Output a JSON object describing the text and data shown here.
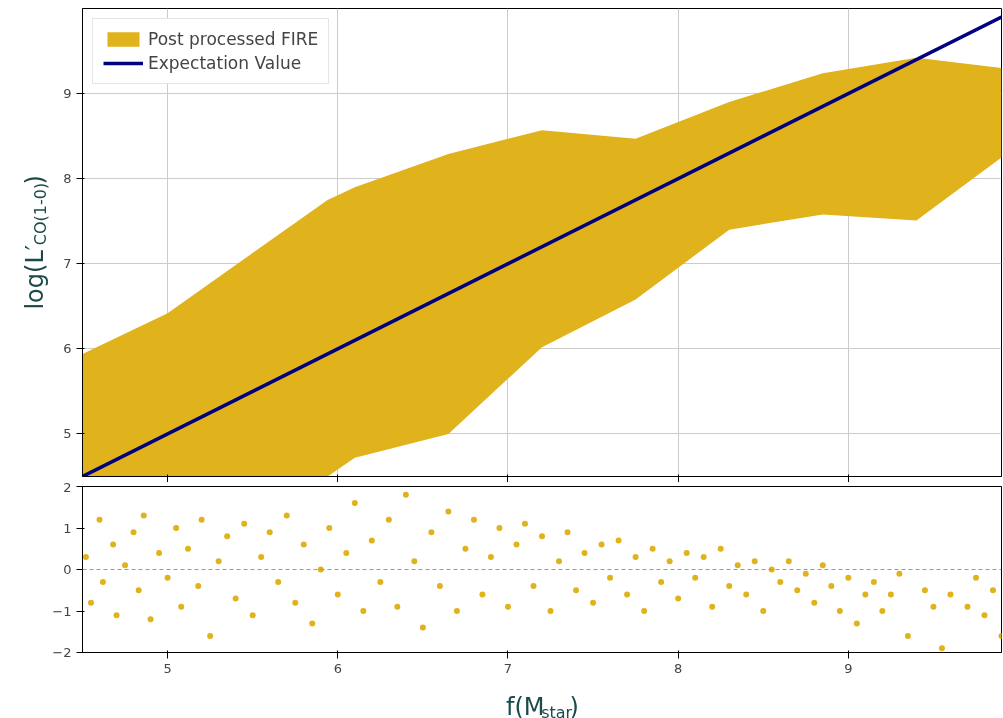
{
  "chart_data": [
    {
      "type": "line",
      "ylabel": "log(L′$_{CO(1-0)}$)",
      "xlim": [
        4.5,
        9.9
      ],
      "ylim": [
        4.5,
        10
      ],
      "xticks": [
        5,
        6,
        7,
        8,
        9
      ],
      "yticks": [
        5,
        6,
        7,
        8,
        9
      ],
      "grid": true,
      "legend": "top left",
      "tick_labels": "y",
      "series": [
        {
          "name": "Post processed FIRE",
          "type": "area",
          "color": "#e0b21b",
          "x": [
            4.5,
            5,
            5.94,
            6.1,
            6.65,
            7.2,
            7.75,
            8.3,
            8.85,
            9.4,
            9.9
          ],
          "values": [
            null,
            null,
            null,
            null,
            null,
            null,
            null,
            null,
            null,
            null,
            null
          ],
          "lower": [
            4.5,
            4.5,
            4.5,
            4.72,
            5.0,
            6.02,
            6.58,
            7.4,
            7.58,
            7.51,
            8.25
          ],
          "upper": [
            5.94,
            6.42,
            7.75,
            7.9,
            8.29,
            8.57,
            8.47,
            8.9,
            9.24,
            9.42,
            9.3
          ]
        },
        {
          "name": "Expectation Value",
          "type": "line",
          "color": "#000080",
          "x": [
            4.5,
            9.9
          ],
          "values": [
            4.5,
            9.9
          ]
        }
      ]
    },
    {
      "type": "scatter",
      "xlabel": "f(M$_{star}$)",
      "xlim": [
        4.5,
        9.9
      ],
      "ylim": [
        -2,
        2
      ],
      "xticks": [
        5,
        6,
        7,
        8,
        9
      ],
      "yticks": [
        -2,
        -1,
        0,
        1,
        2
      ],
      "grid": false,
      "legend": false,
      "ref_lines": [
        {
          "axis": "y",
          "value": 0,
          "color": "#999999",
          "line_style": "dashed"
        }
      ],
      "series": [
        {
          "color": "#e0b21b",
          "x": [
            4.52,
            4.55,
            4.6,
            4.62,
            4.68,
            4.7,
            4.75,
            4.8,
            4.83,
            4.86,
            4.9,
            4.95,
            5.0,
            5.05,
            5.08,
            5.12,
            5.18,
            5.2,
            5.25,
            5.3,
            5.35,
            5.4,
            5.45,
            5.5,
            5.55,
            5.6,
            5.65,
            5.7,
            5.75,
            5.8,
            5.85,
            5.9,
            5.95,
            6.0,
            6.05,
            6.1,
            6.15,
            6.2,
            6.25,
            6.3,
            6.35,
            6.4,
            6.45,
            6.5,
            6.55,
            6.6,
            6.65,
            6.7,
            6.75,
            6.8,
            6.85,
            6.9,
            6.95,
            7.0,
            7.05,
            7.1,
            7.15,
            7.2,
            7.25,
            7.3,
            7.35,
            7.4,
            7.45,
            7.5,
            7.55,
            7.6,
            7.65,
            7.7,
            7.75,
            7.8,
            7.85,
            7.9,
            7.95,
            8.0,
            8.05,
            8.1,
            8.15,
            8.2,
            8.25,
            8.3,
            8.35,
            8.4,
            8.45,
            8.5,
            8.55,
            8.6,
            8.65,
            8.7,
            8.75,
            8.8,
            8.85,
            8.9,
            8.95,
            9.0,
            9.05,
            9.1,
            9.15,
            9.2,
            9.25,
            9.3,
            9.35,
            9.45,
            9.5,
            9.55,
            9.6,
            9.7,
            9.75,
            9.8,
            9.85,
            9.9
          ],
          "values": [
            0.3,
            -0.8,
            1.2,
            -0.3,
            0.6,
            -1.1,
            0.1,
            0.9,
            -0.5,
            1.3,
            -1.2,
            0.4,
            -0.2,
            1.0,
            -0.9,
            0.5,
            -0.4,
            1.2,
            -1.6,
            0.2,
            0.8,
            -0.7,
            1.1,
            -1.1,
            0.3,
            0.9,
            -0.3,
            1.3,
            -0.8,
            0.6,
            -1.3,
            0.0,
            1.0,
            -0.6,
            0.4,
            1.6,
            -1.0,
            0.7,
            -0.3,
            1.2,
            -0.9,
            1.8,
            0.2,
            -1.4,
            0.9,
            -0.4,
            1.4,
            -1.0,
            0.5,
            1.2,
            -0.6,
            0.3,
            1.0,
            -0.9,
            0.6,
            1.1,
            -0.4,
            0.8,
            -1.0,
            0.2,
            0.9,
            -0.5,
            0.4,
            -0.8,
            0.6,
            -0.2,
            0.7,
            -0.6,
            0.3,
            -1.0,
            0.5,
            -0.3,
            0.2,
            -0.7,
            0.4,
            -0.2,
            0.3,
            -0.9,
            0.5,
            -0.4,
            0.1,
            -0.6,
            0.2,
            -1.0,
            0.0,
            -0.3,
            0.2,
            -0.5,
            -0.1,
            -0.8,
            0.1,
            -0.4,
            -1.0,
            -0.2,
            -1.3,
            -0.6,
            -0.3,
            -1.0,
            -0.6,
            -0.1,
            -1.6,
            -0.5,
            -0.9,
            -1.9,
            -0.6,
            -0.9,
            -0.2,
            -1.1,
            -0.5,
            -1.6
          ]
        }
      ]
    }
  ]
}
